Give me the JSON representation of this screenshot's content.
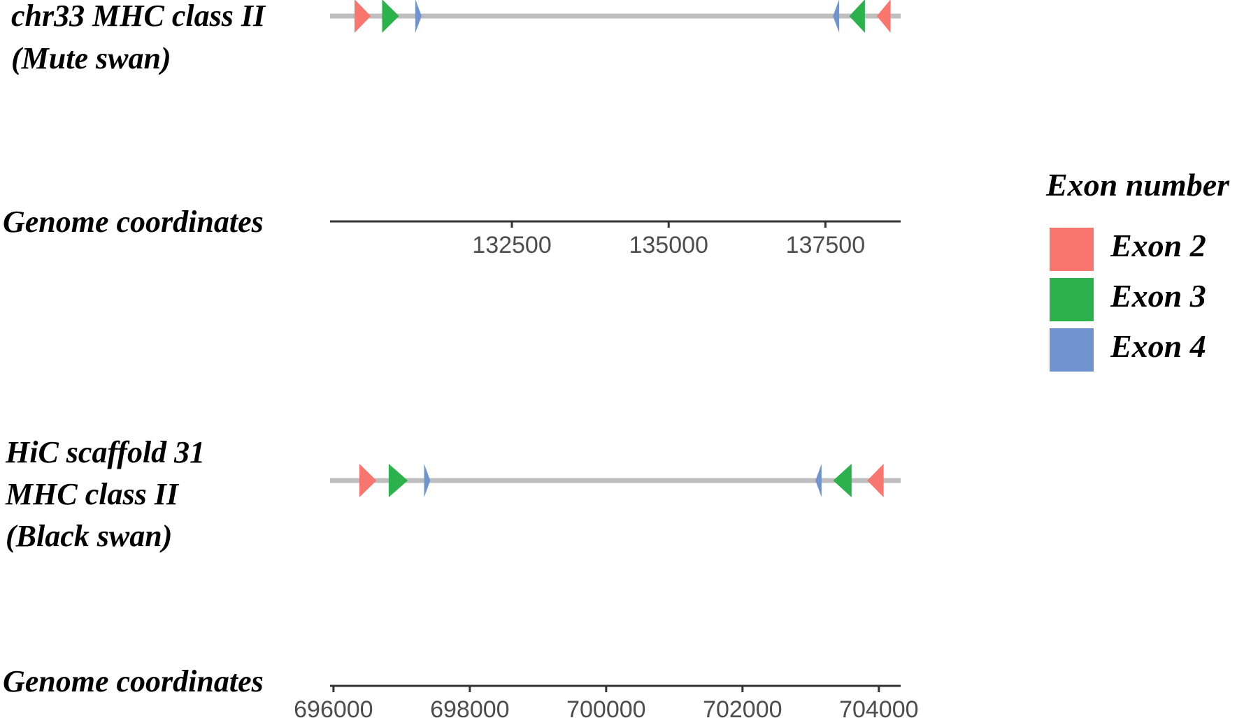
{
  "tracks": [
    {
      "label_lines": [
        "chr33 MHC class II",
        "(Mute swan)"
      ],
      "axis_label": "Genome coordinates",
      "domain": [
        129600,
        138700
      ],
      "ticks": [
        132500,
        135000,
        137500
      ],
      "features": [
        {
          "exon": "Exon 2",
          "start": 129990,
          "end": 130250,
          "strand": "+"
        },
        {
          "exon": "Exon 3",
          "start": 130430,
          "end": 130700,
          "strand": "+"
        },
        {
          "exon": "Exon 4",
          "start": 130960,
          "end": 131060,
          "strand": "+"
        },
        {
          "exon": "Exon 4",
          "start": 137620,
          "end": 137720,
          "strand": "-"
        },
        {
          "exon": "Exon 3",
          "start": 137880,
          "end": 138130,
          "strand": "-"
        },
        {
          "exon": "Exon 2",
          "start": 138320,
          "end": 138540,
          "strand": "-"
        }
      ]
    },
    {
      "label_lines": [
        "HiC scaffold 31",
        "MHC class II",
        "(Black swan)"
      ],
      "axis_label": "Genome coordinates",
      "domain": [
        695950,
        704320
      ],
      "ticks": [
        696000,
        698000,
        700000,
        702000,
        704000
      ],
      "features": [
        {
          "exon": "Exon 2",
          "start": 696380,
          "end": 696630,
          "strand": "+"
        },
        {
          "exon": "Exon 3",
          "start": 696810,
          "end": 697090,
          "strand": "+"
        },
        {
          "exon": "Exon 4",
          "start": 697330,
          "end": 697420,
          "strand": "+"
        },
        {
          "exon": "Exon 4",
          "start": 703070,
          "end": 703160,
          "strand": "-"
        },
        {
          "exon": "Exon 3",
          "start": 703330,
          "end": 703600,
          "strand": "-"
        },
        {
          "exon": "Exon 2",
          "start": 703830,
          "end": 704070,
          "strand": "-"
        }
      ]
    }
  ],
  "legend": {
    "title": "Exon number",
    "items": [
      {
        "label": "Exon 2",
        "color": "#F8766D"
      },
      {
        "label": "Exon 3",
        "color": "#2BB24C"
      },
      {
        "label": "Exon 4",
        "color": "#7094D0"
      }
    ]
  },
  "colors": {
    "backbone": "#bebebe",
    "axis": "#333333"
  }
}
